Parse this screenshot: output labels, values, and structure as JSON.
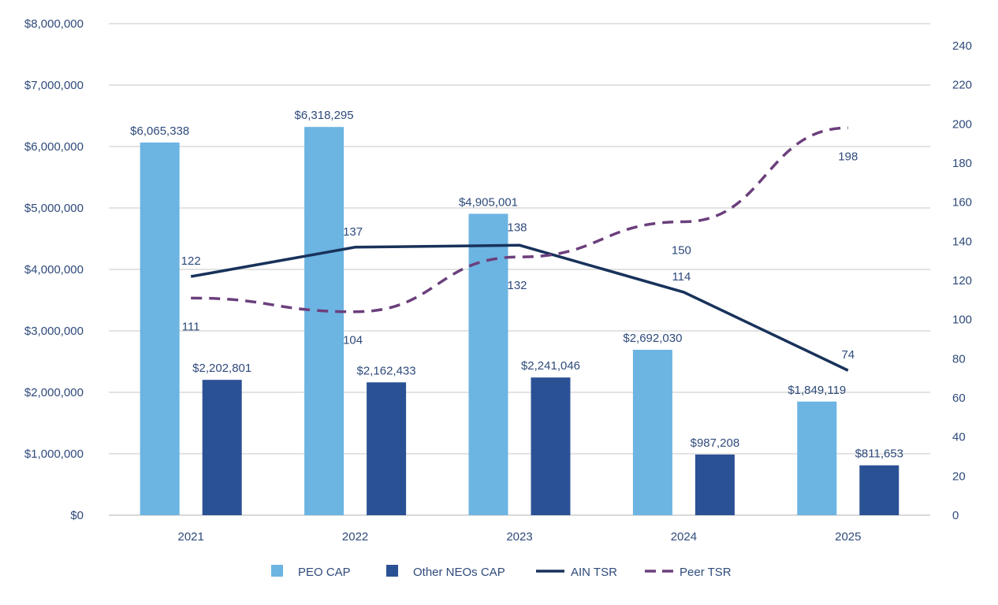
{
  "chart_data": {
    "type": "bar",
    "categories": [
      "2021",
      "2022",
      "2023",
      "2024",
      "2025"
    ],
    "y_left": {
      "ylim": [
        0,
        8000000
      ],
      "ticks": [
        0,
        1000000,
        2000000,
        3000000,
        4000000,
        5000000,
        6000000,
        7000000,
        8000000
      ],
      "tick_labels": [
        "$0",
        "$1,000,000",
        "$2,000,000",
        "$3,000,000",
        "$4,000,000",
        "$5,000,000",
        "$6,000,000",
        "$7,000,000",
        "$8,000,000"
      ]
    },
    "y_right": {
      "ylim": [
        0,
        240
      ],
      "ticks": [
        0,
        20,
        40,
        60,
        80,
        100,
        120,
        140,
        160,
        180,
        200,
        220,
        240
      ],
      "tick_labels": [
        "0",
        "20",
        "40",
        "60",
        "80",
        "100",
        "120",
        "140",
        "160",
        "180",
        "200",
        "220",
        "240"
      ]
    },
    "grid": true,
    "legend_position": "bottom",
    "series": [
      {
        "name": "PEO CAP",
        "kind": "bar",
        "axis": "left",
        "color": "#6cb4e2",
        "values": [
          6065338,
          6318295,
          4905001,
          2692030,
          1849119
        ],
        "labels": [
          "$6,065,338",
          "$6,318,295",
          "$4,905,001",
          "$2,692,030",
          "$1,849,119"
        ]
      },
      {
        "name": "Other NEOs CAP",
        "kind": "bar",
        "axis": "left",
        "color": "#2b5195",
        "values": [
          2202801,
          2162433,
          2241046,
          987208,
          811653
        ],
        "labels": [
          "$2,202,801",
          "$2,162,433",
          "$2,241,046",
          "$987,208",
          "$811,653"
        ]
      },
      {
        "name": "AIN TSR",
        "kind": "line",
        "axis": "right",
        "color": "#18325a",
        "dash": false,
        "values": [
          122,
          137,
          138,
          114,
          74
        ],
        "labels": [
          "122",
          "137",
          "138",
          "114",
          "74"
        ]
      },
      {
        "name": "Peer TSR",
        "kind": "line",
        "axis": "right",
        "color": "#6b3f7c",
        "dash": true,
        "values": [
          111,
          104,
          132,
          150,
          198
        ],
        "labels": [
          "111",
          "104",
          "132",
          "150",
          "198"
        ]
      }
    ]
  }
}
